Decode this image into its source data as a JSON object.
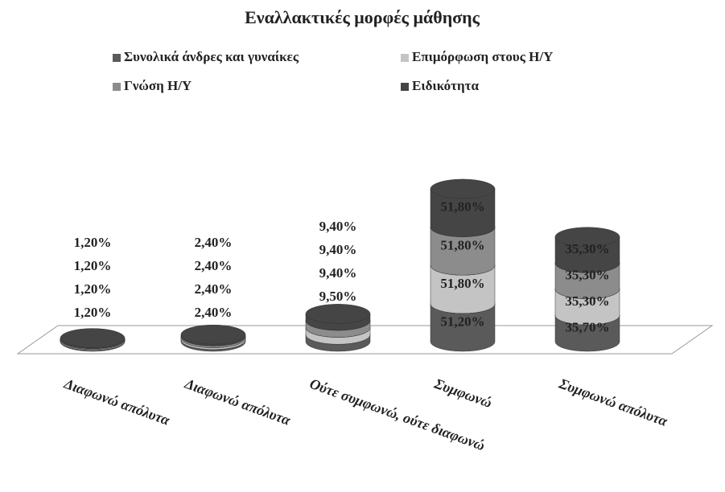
{
  "chart_data": {
    "type": "stacked-cylinder",
    "title": "Εναλλακτικές μορφές μάθησης",
    "categories": [
      "Διαφωνώ απόλυτα",
      "Διαφωνώ απόλυτα",
      "Ούτε συμφωνώ, ούτε διαφωνώ",
      "Συμφωνώ",
      "Συμφωνώ απόλυτα"
    ],
    "series": [
      {
        "name": "Συνολικά άνδρες και γυναίκες",
        "color": "#5a5a5a",
        "values": [
          1.2,
          2.4,
          9.5,
          51.2,
          35.7
        ],
        "value_labels": [
          "1,20%",
          "2,40%",
          "9,50%",
          "51,20%",
          "35,70%"
        ]
      },
      {
        "name": "Επιμόρφωση στους Η/Υ",
        "color": "#c4c4c4",
        "values": [
          1.2,
          2.4,
          9.4,
          51.8,
          35.3
        ],
        "value_labels": [
          "1,20%",
          "2,40%",
          "9,40%",
          "51,80%",
          "35,30%"
        ]
      },
      {
        "name": "Γνώση Η/Υ",
        "color": "#8c8c8c",
        "values": [
          1.2,
          2.4,
          9.4,
          51.8,
          35.3
        ],
        "value_labels": [
          "1,20%",
          "2,40%",
          "9,40%",
          "51,80%",
          "35,30%"
        ]
      },
      {
        "name": "Ειδικότητα",
        "color": "#454545",
        "values": [
          1.2,
          2.4,
          9.4,
          51.8,
          35.3
        ],
        "value_labels": [
          "1,20%",
          "2,40%",
          "9,40%",
          "51,80%",
          "35,30%"
        ]
      }
    ]
  }
}
